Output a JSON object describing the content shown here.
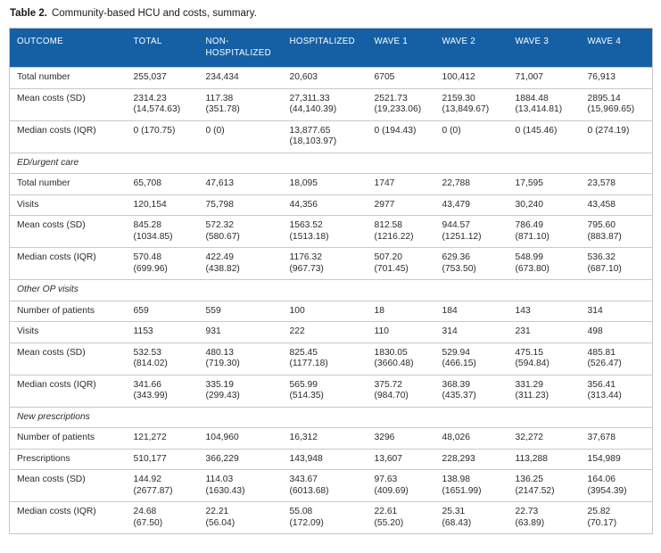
{
  "title": {
    "label": "Table 2.",
    "caption": "Community-based HCU and costs, summary."
  },
  "colors": {
    "header_bg": "#1560a5",
    "header_text": "#ffffff",
    "row_line": "#c9c9c9",
    "body_text": "#2b2b2b"
  },
  "table": {
    "columns": [
      "OUTCOME",
      "TOTAL",
      "NON-\nHOSPITALIZED",
      "HOSPITALIZED",
      "WAVE 1",
      "WAVE 2",
      "WAVE 3",
      "WAVE 4"
    ],
    "sections": [
      {
        "name": "",
        "rows": [
          {
            "label": "Total number",
            "values": [
              "255,037",
              "234,434",
              "20,603",
              "6705",
              "100,412",
              "71,007",
              "76,913"
            ]
          },
          {
            "label": "Mean costs (SD)",
            "values": [
              "2314.23\n(14,574.63)",
              "117.38\n(351.78)",
              "27,311.33\n(44,140.39)",
              "2521.73\n(19,233.06)",
              "2159.30\n(13,849.67)",
              "1884.48\n(13,414.81)",
              "2895.14\n(15,969.65)"
            ]
          },
          {
            "label": "Median costs (IQR)",
            "values": [
              "0 (170.75)",
              "0 (0)",
              "13,877.65\n(18,103.97)",
              "0 (194.43)",
              "0 (0)",
              "0 (145.46)",
              "0 (274.19)"
            ]
          }
        ]
      },
      {
        "name": "ED/urgent care",
        "rows": [
          {
            "label": "Total number",
            "values": [
              "65,708",
              "47,613",
              "18,095",
              "1747",
              "22,788",
              "17,595",
              "23,578"
            ]
          },
          {
            "label": "Visits",
            "values": [
              "120,154",
              "75,798",
              "44,356",
              "2977",
              "43,479",
              "30,240",
              "43,458"
            ]
          },
          {
            "label": "Mean costs (SD)",
            "values": [
              "845.28\n(1034.85)",
              "572.32\n(580.67)",
              "1563.52\n(1513.18)",
              "812.58\n(1216.22)",
              "944.57\n(1251.12)",
              "786.49\n(871.10)",
              "795.60\n(883.87)"
            ]
          },
          {
            "label": "Median costs (IQR)",
            "values": [
              "570.48\n(699.96)",
              "422.49\n(438.82)",
              "1176.32\n(967.73)",
              "507.20\n(701.45)",
              "629.36\n(753.50)",
              "548.99\n(673.80)",
              "536.32\n(687.10)"
            ]
          }
        ]
      },
      {
        "name": "Other OP visits",
        "rows": [
          {
            "label": "Number of patients",
            "values": [
              "659",
              "559",
              "100",
              "18",
              "184",
              "143",
              "314"
            ]
          },
          {
            "label": "Visits",
            "values": [
              "1153",
              "931",
              "222",
              "110",
              "314",
              "231",
              "498"
            ]
          },
          {
            "label": "Mean costs (SD)",
            "values": [
              "532.53\n(814.02)",
              "480.13\n(719.30)",
              "825.45\n(1177.18)",
              "1830.05\n(3660.48)",
              "529.94\n(466.15)",
              "475.15\n(594.84)",
              "485.81\n(526.47)"
            ]
          },
          {
            "label": "Median costs (IQR)",
            "values": [
              "341.66\n(343.99)",
              "335.19\n(299.43)",
              "565.99\n(514.35)",
              "375.72\n(984.70)",
              "368.39\n(435.37)",
              "331.29\n(311.23)",
              "356.41\n(313.44)"
            ]
          }
        ]
      },
      {
        "name": "New prescriptions",
        "rows": [
          {
            "label": "Number of patients",
            "values": [
              "121,272",
              "104,960",
              "16,312",
              "3296",
              "48,026",
              "32,272",
              "37,678"
            ]
          },
          {
            "label": "Prescriptions",
            "values": [
              "510,177",
              "366,229",
              "143,948",
              "13,607",
              "228,293",
              "113,288",
              "154,989"
            ]
          },
          {
            "label": "Mean costs (SD)",
            "values": [
              "144.92\n(2677.87)",
              "114.03\n(1630.43)",
              "343.67\n(6013.68)",
              "97.63\n(409.69)",
              "138.98\n(1651.99)",
              "136.25\n(2147.52)",
              "164.06\n(3954.39)"
            ]
          },
          {
            "label": "Median costs (IQR)",
            "values": [
              "24.68\n(67.50)",
              "22.21\n(56.04)",
              "55.08\n(172.09)",
              "22.61\n(55.20)",
              "25.31\n(68.43)",
              "22.73\n(63.89)",
              "25.82\n(70.17)"
            ]
          }
        ]
      }
    ]
  }
}
